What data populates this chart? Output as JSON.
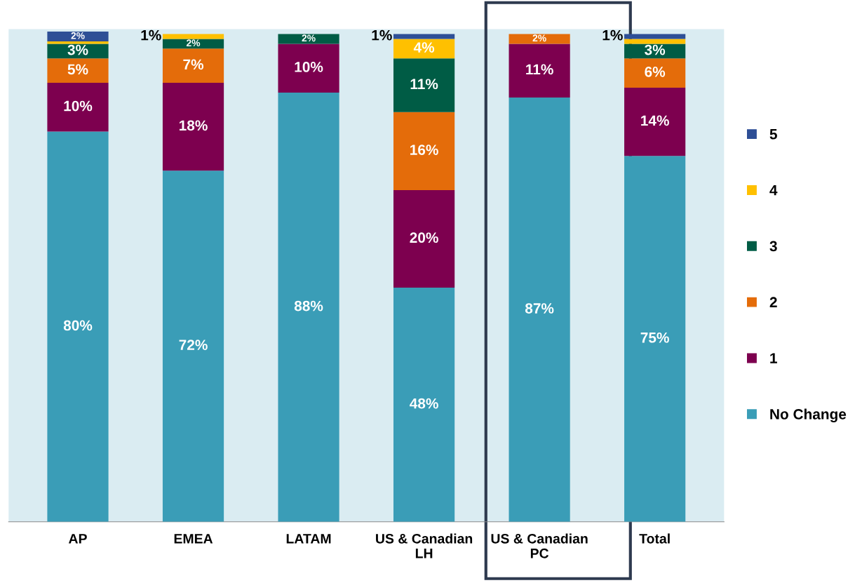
{
  "chart_data": {
    "type": "bar",
    "stacked": true,
    "categories": [
      "AP",
      "EMEA",
      "LATAM",
      "US & Canadian\nLH",
      "US & Canadian\nPC",
      "Total"
    ],
    "series": [
      {
        "name": "No Change",
        "color": "#3a9db7",
        "values": [
          80,
          72,
          88,
          48,
          87,
          75
        ],
        "value_labels": [
          "80%",
          "72%",
          "88%",
          "48%",
          "87%",
          "75%"
        ]
      },
      {
        "name": "1",
        "color": "#7d004f",
        "values": [
          10,
          18,
          10,
          20,
          11,
          14
        ],
        "value_labels": [
          "10%",
          "18%",
          "10%",
          "20%",
          "11%",
          "14%"
        ]
      },
      {
        "name": "2",
        "color": "#e46c0a",
        "values": [
          5,
          7,
          0,
          16,
          2,
          6
        ],
        "value_labels": [
          "5%",
          "7%",
          null,
          "16%",
          "2%",
          "6%"
        ]
      },
      {
        "name": "3",
        "color": "#005c45",
        "values": [
          3,
          2,
          2,
          11,
          0,
          3
        ],
        "value_labels": [
          "3%",
          "2%",
          "2%",
          "11%",
          null,
          "3%"
        ]
      },
      {
        "name": "4",
        "color": "#ffc000",
        "values": [
          0.5,
          1,
          0,
          4,
          0,
          1
        ],
        "value_labels": [
          null,
          "1%",
          null,
          "4%",
          null,
          null
        ]
      },
      {
        "name": "5",
        "color": "#2e4f96",
        "values": [
          2,
          0,
          0,
          1,
          0,
          1
        ],
        "value_labels": [
          "2%",
          null,
          null,
          "1%",
          null,
          "1%"
        ]
      }
    ],
    "ylim": [
      0,
      101
    ],
    "tick_labels": "x",
    "legend": "right"
  }
}
